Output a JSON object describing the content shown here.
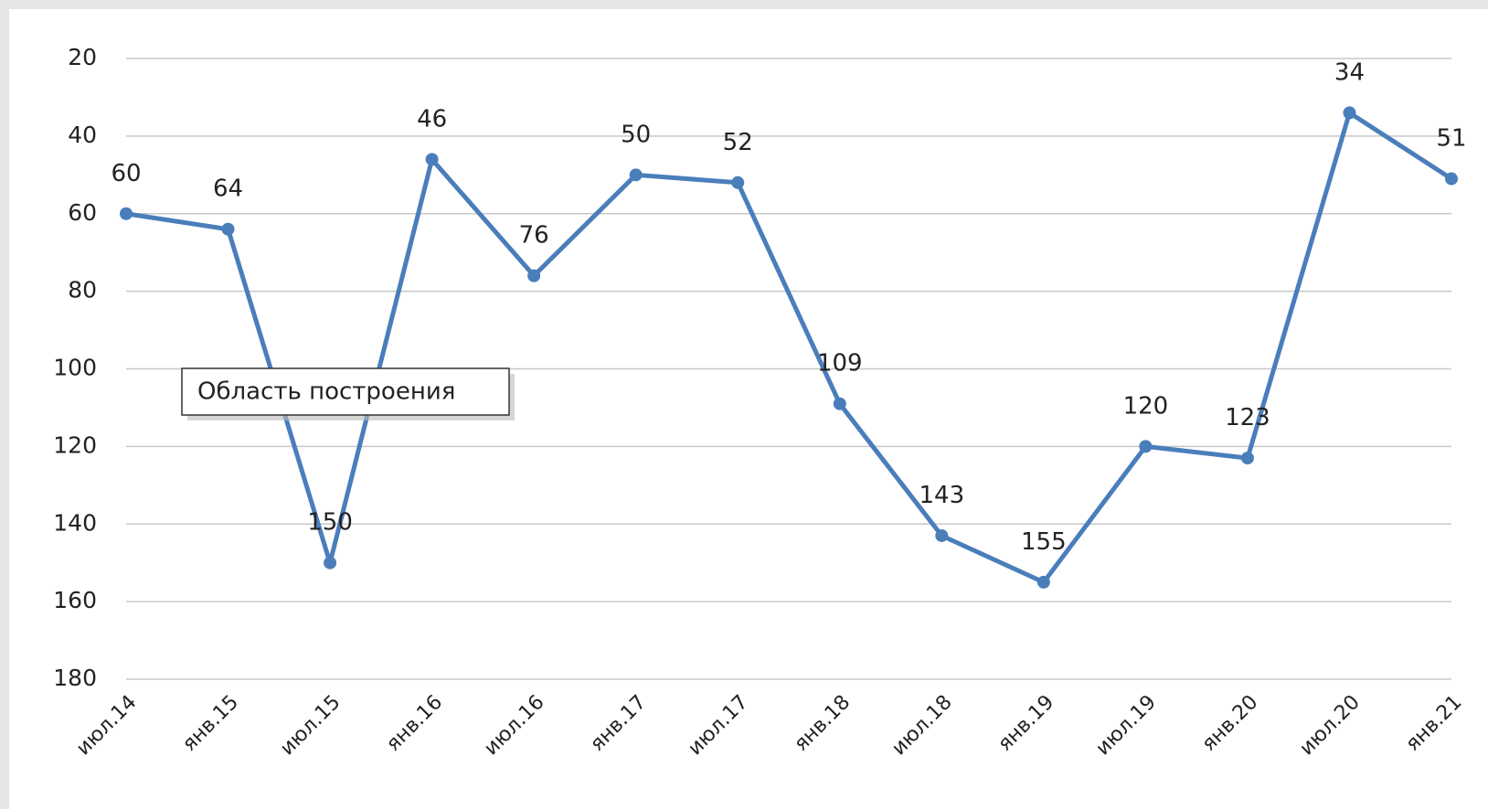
{
  "chart_data": {
    "type": "line",
    "categories": [
      "июл.14",
      "янв.15",
      "июл.15",
      "янв.16",
      "июл.16",
      "янв.17",
      "июл.17",
      "янв.18",
      "июл.18",
      "янв.19",
      "июл.19",
      "янв.20",
      "июл.20",
      "янв.21"
    ],
    "series": [
      {
        "color": "#4a7ebb",
        "values": [
          60,
          64,
          150,
          46,
          76,
          50,
          52,
          109,
          143,
          155,
          120,
          123,
          34,
          51
        ]
      }
    ],
    "ylim": [
      20,
      180
    ],
    "yticks": [
      20,
      40,
      60,
      80,
      100,
      120,
      140,
      160,
      180
    ],
    "y_reversed": true,
    "grid": true,
    "data_labels": true,
    "annotation": "Область построения"
  }
}
